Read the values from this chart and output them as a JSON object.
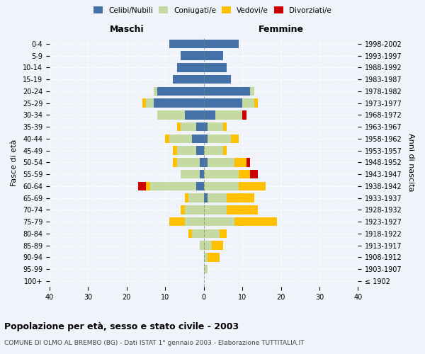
{
  "age_groups": [
    "100+",
    "95-99",
    "90-94",
    "85-89",
    "80-84",
    "75-79",
    "70-74",
    "65-69",
    "60-64",
    "55-59",
    "50-54",
    "45-49",
    "40-44",
    "35-39",
    "30-34",
    "25-29",
    "20-24",
    "15-19",
    "10-14",
    "5-9",
    "0-4"
  ],
  "birth_years": [
    "≤ 1902",
    "1903-1907",
    "1908-1912",
    "1913-1917",
    "1918-1922",
    "1923-1927",
    "1928-1932",
    "1933-1937",
    "1938-1942",
    "1943-1947",
    "1948-1952",
    "1953-1957",
    "1958-1962",
    "1963-1967",
    "1968-1972",
    "1973-1977",
    "1978-1982",
    "1983-1987",
    "1988-1992",
    "1993-1997",
    "1998-2002"
  ],
  "male": {
    "celibi": [
      0,
      0,
      0,
      0,
      0,
      0,
      0,
      0,
      2,
      1,
      1,
      2,
      3,
      2,
      5,
      13,
      12,
      8,
      7,
      6,
      9
    ],
    "coniugati": [
      0,
      0,
      0,
      1,
      3,
      5,
      5,
      4,
      12,
      5,
      6,
      5,
      6,
      4,
      7,
      2,
      1,
      0,
      0,
      0,
      0
    ],
    "vedovi": [
      0,
      0,
      0,
      0,
      1,
      4,
      1,
      1,
      1,
      0,
      1,
      1,
      1,
      1,
      0,
      1,
      0,
      0,
      0,
      0,
      0
    ],
    "divorziati": [
      0,
      0,
      0,
      0,
      0,
      0,
      0,
      0,
      2,
      0,
      0,
      0,
      0,
      0,
      0,
      0,
      0,
      0,
      0,
      0,
      0
    ]
  },
  "female": {
    "nubili": [
      0,
      0,
      0,
      0,
      0,
      0,
      0,
      1,
      0,
      0,
      1,
      0,
      1,
      1,
      3,
      10,
      12,
      7,
      6,
      5,
      9
    ],
    "coniugate": [
      0,
      1,
      1,
      2,
      4,
      8,
      6,
      5,
      9,
      9,
      7,
      5,
      6,
      4,
      7,
      3,
      1,
      0,
      0,
      0,
      0
    ],
    "vedove": [
      0,
      0,
      3,
      3,
      2,
      11,
      8,
      7,
      7,
      3,
      3,
      1,
      2,
      1,
      0,
      1,
      0,
      0,
      0,
      0,
      0
    ],
    "divorziate": [
      0,
      0,
      0,
      0,
      0,
      0,
      0,
      0,
      0,
      2,
      1,
      0,
      0,
      0,
      1,
      0,
      0,
      0,
      0,
      0,
      0
    ]
  },
  "colors": {
    "celibi_nubili": "#4472a8",
    "coniugati": "#c5d9a3",
    "vedovi": "#ffc000",
    "divorziati": "#cc0000"
  },
  "xlim": 40,
  "title": "Popolazione per età, sesso e stato civile - 2003",
  "subtitle": "COMUNE DI OLMO AL BREMBO (BG) - Dati ISTAT 1° gennaio 2003 - Elaborazione TUTTITALIA.IT",
  "ylabel_left": "Fasce di età",
  "ylabel_right": "Anni di nascita",
  "xlabel_maschi": "Maschi",
  "xlabel_femmine": "Femmine",
  "background_color": "#f0f4fa",
  "legend_labels": [
    "Celibi/Nubili",
    "Coniugati/e",
    "Vedovi/e",
    "Divorziati/e"
  ],
  "xtick_labels": [
    "40",
    "30",
    "20",
    "10",
    "0",
    "10",
    "20",
    "30",
    "40"
  ],
  "xtick_vals": [
    -40,
    -30,
    -20,
    -10,
    0,
    10,
    20,
    30,
    40
  ]
}
